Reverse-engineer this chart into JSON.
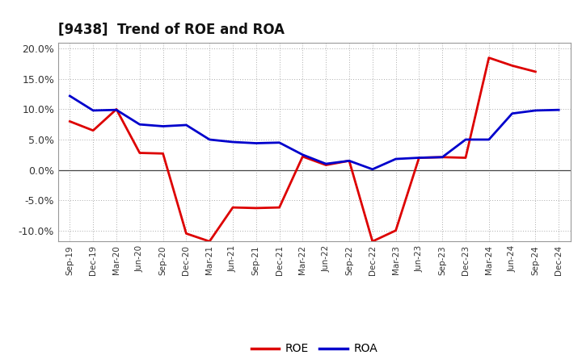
{
  "title": "[9438]  Trend of ROE and ROA",
  "x_labels": [
    "Sep-19",
    "Dec-19",
    "Mar-20",
    "Jun-20",
    "Sep-20",
    "Dec-20",
    "Mar-21",
    "Jun-21",
    "Sep-21",
    "Dec-21",
    "Mar-22",
    "Jun-22",
    "Sep-22",
    "Dec-22",
    "Mar-23",
    "Jun-23",
    "Sep-23",
    "Dec-23",
    "Mar-24",
    "Jun-24",
    "Sep-24",
    "Dec-24"
  ],
  "roe": [
    8.0,
    6.5,
    10.0,
    2.8,
    2.7,
    -10.5,
    -11.8,
    -6.2,
    -6.3,
    -6.2,
    2.2,
    0.8,
    1.5,
    -11.8,
    -10.0,
    2.0,
    2.1,
    2.0,
    18.5,
    17.2,
    16.2,
    null
  ],
  "roa": [
    12.2,
    9.8,
    9.9,
    7.5,
    7.2,
    7.4,
    5.0,
    4.6,
    4.4,
    4.5,
    2.5,
    1.0,
    1.5,
    0.1,
    1.8,
    2.0,
    2.1,
    5.0,
    5.0,
    9.3,
    9.8,
    9.9
  ],
  "roe_color": "#dd0000",
  "roa_color": "#0000cc",
  "ylim": [
    -11.8,
    21.0
  ],
  "yticks": [
    -10.0,
    -5.0,
    0.0,
    5.0,
    10.0,
    15.0,
    20.0
  ],
  "ytick_labels": [
    "-10.0%",
    "-5.0%",
    "0.0%",
    "5.0%",
    "10.0%",
    "15.0%",
    "20.0%"
  ],
  "background_color": "#ffffff",
  "grid_color": "#aaaaaa",
  "line_width": 2.0
}
